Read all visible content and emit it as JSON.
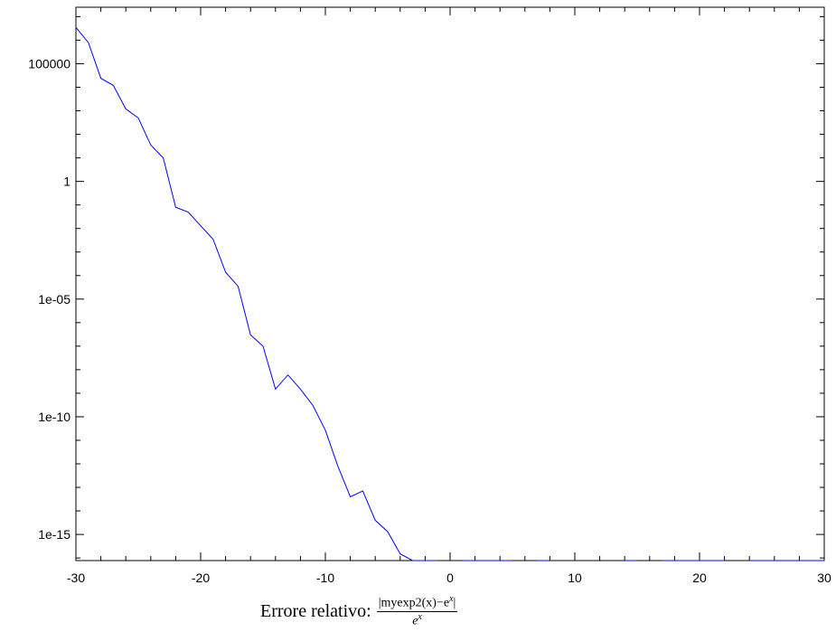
{
  "chart_data": {
    "type": "line",
    "title": "",
    "xlabel": {
      "prefix": "Errore relativo:",
      "numerator": "|myexp2(x)−e",
      "numerator_sup": "x",
      "numerator_end": "|",
      "denominator": "e",
      "denominator_sup": "x"
    },
    "ylabel": "",
    "xlim": [
      -30,
      30
    ],
    "ylim_log10": [
      -16.11,
      7.4
    ],
    "yscale": "log",
    "grid": false,
    "legend": "none",
    "x_ticks": [
      "-30",
      "-20",
      "-10",
      "0",
      "10",
      "20",
      "30"
    ],
    "x_tick_values": [
      -30,
      -20,
      -10,
      0,
      10,
      20,
      30
    ],
    "y_ticks": [
      "1e-15",
      "1e-10",
      "1e-05",
      "1",
      "100000"
    ],
    "y_tick_log10": [
      -15,
      -10,
      -5,
      0,
      5
    ],
    "series": [
      {
        "color": "#0000ff",
        "segments": [
          [
            [
              -30,
              3500000.0
            ],
            [
              -29,
              790000.0
            ],
            [
              -28,
              24000.0
            ],
            [
              -27,
              12000.0
            ],
            [
              -26,
              1200.0
            ],
            [
              -25,
              500.0
            ],
            [
              -24,
              35
            ],
            [
              -23,
              10
            ],
            [
              -22,
              0.08
            ],
            [
              -21,
              0.05
            ],
            [
              -20,
              0.013
            ],
            [
              -19,
              0.0035
            ],
            [
              -18,
              0.00014
            ],
            [
              -17,
              3.5e-05
            ],
            [
              -16,
              3e-07
            ],
            [
              -15,
              1e-07
            ],
            [
              -14,
              1.5e-09
            ],
            [
              -13,
              6e-09
            ],
            [
              -12,
              1.5e-09
            ],
            [
              -11,
              3e-10
            ],
            [
              -10,
              2.7e-11
            ],
            [
              -9,
              8e-13
            ],
            [
              -8,
              4e-14
            ],
            [
              -7,
              7e-14
            ],
            [
              -6,
              4e-15
            ],
            [
              -5,
              1.3e-15
            ],
            [
              -4,
              1.5e-16
            ],
            [
              -3,
              3.4e-17
            ],
            [
              -2,
              1.2e-17
            ],
            [
              -1,
              1e-17
            ]
          ],
          [
            [
              1,
              1e-17
            ],
            [
              4,
              2e-17
            ],
            [
              5,
              1.7e-17
            ]
          ],
          [
            [
              7,
              2.5e-17
            ],
            [
              8,
              1e-17
            ]
          ],
          [
            [
              10,
              1.1e-17
            ],
            [
              10,
              1e-17
            ]
          ],
          [
            [
              12,
              1.1e-17
            ],
            [
              12,
              1e-17
            ]
          ],
          [
            [
              14,
              1.7e-17
            ],
            [
              15,
              1.4e-17
            ]
          ],
          [
            [
              17,
              2.4e-17
            ],
            [
              18,
              1.2e-17
            ],
            [
              20,
              1e-17
            ],
            [
              22,
              1.3e-17
            ]
          ],
          [
            [
              24,
              1e-17
            ],
            [
              26,
              1.4e-17
            ],
            [
              27,
              1e-17
            ],
            [
              28,
              2.1e-17
            ],
            [
              30,
              1.6e-17
            ]
          ]
        ]
      }
    ]
  }
}
